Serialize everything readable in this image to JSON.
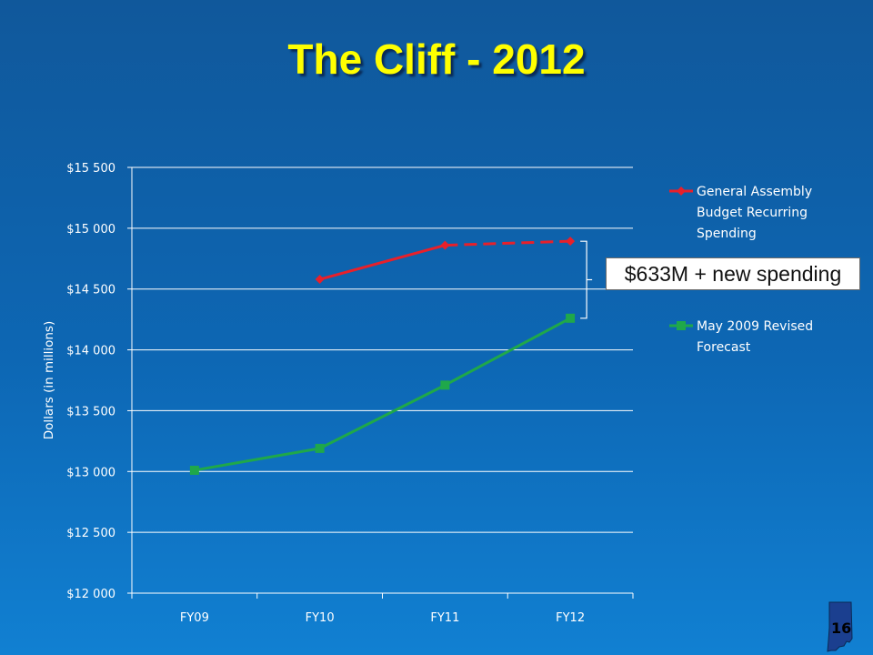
{
  "slide": {
    "title": "The Cliff - 2012",
    "callout": "$633M + new spending",
    "page_number": "16"
  },
  "chart_data": {
    "type": "line",
    "categories": [
      "FY09",
      "FY10",
      "FY11",
      "FY12"
    ],
    "ylabel": "Dollars (in millions)",
    "ylim": [
      12000,
      15500
    ],
    "yticks": [
      12000,
      12500,
      13000,
      13500,
      14000,
      14500,
      15000,
      15500
    ],
    "ytick_labels": [
      "$12 000",
      "$12 500",
      "$13 000",
      "$13 500",
      "$14 000",
      "$14 500",
      "$15 000",
      "$15 500"
    ],
    "grid": "horizontal",
    "legend_position": "right",
    "series": [
      {
        "name": "General Assembly Budget Recurring Spending",
        "legend_lines": [
          "General Assembly",
          "Budget Recurring",
          "Spending"
        ],
        "values": [
          null,
          14580,
          14860,
          14893
        ],
        "color": "#e8202a",
        "marker": "diamond",
        "dashed_last_segment": true
      },
      {
        "name": "May 2009 Revised Forecast",
        "legend_lines": [
          "May 2009 Revised",
          "Forecast"
        ],
        "values": [
          13010,
          13190,
          13710,
          14260
        ],
        "color": "#1fa84a",
        "marker": "square"
      }
    ]
  },
  "colors": {
    "title": "#ffff00",
    "grid": "#ffffff",
    "text": "#ffffff"
  }
}
